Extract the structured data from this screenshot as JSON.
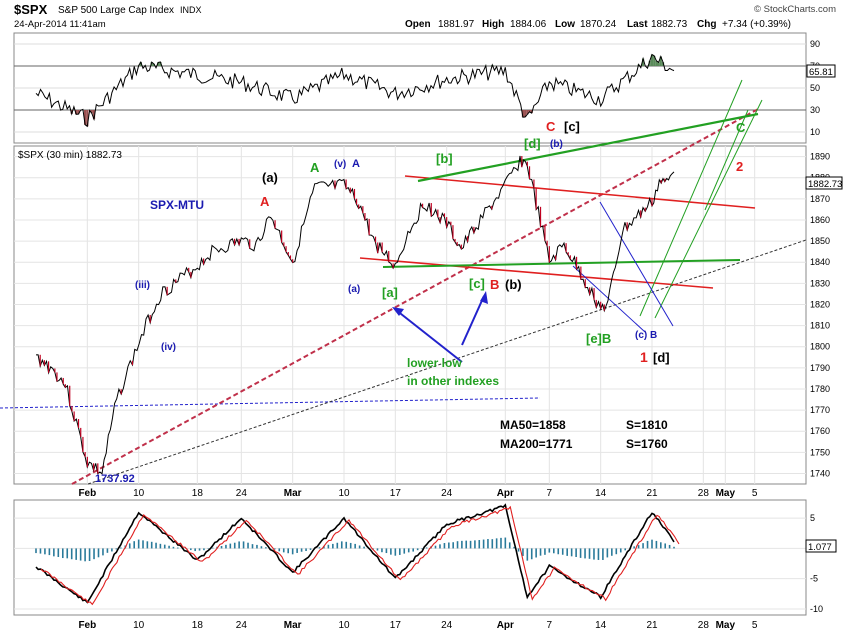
{
  "header": {
    "symbol": "$SPX",
    "name": "S&P 500 Large Cap Index",
    "exchange": "INDX",
    "timestamp": "24-Apr-2014 11:41am",
    "open_label": "Open",
    "open": "1881.97",
    "high_label": "High",
    "high": "1884.06",
    "low_label": "Low",
    "low": "1870.24",
    "last_label": "Last",
    "last": "1882.73",
    "chg_label": "Chg",
    "chg": "+7.34 (+0.39%)",
    "watermark": "© StockCharts.com"
  },
  "rsi_panel": {
    "ticks": [
      "90",
      "70",
      "50",
      "30",
      "10"
    ],
    "last_badge": "65.81",
    "series_color": "#000000",
    "overbought_fill": "#5a8a5a",
    "oversold_fill": "#9a5050"
  },
  "price_panel": {
    "label": "$SPX (30 min) 1882.73",
    "title": "SPX-MTU",
    "last_badge": "1882.73",
    "ticks": [
      "1890",
      "1880",
      "1870",
      "1860",
      "1850",
      "1840",
      "1830",
      "1820",
      "1810",
      "1800",
      "1790",
      "1780",
      "1770",
      "1760",
      "1750",
      "1740"
    ],
    "annotations": {
      "low_label": "1737.92",
      "iii": "(iii)",
      "iv": "(iv)",
      "v": "(v)",
      "a_blue": "(a)",
      "A_blue": "A",
      "A_red": "A",
      "A_green": "A",
      "a_black": "(a)",
      "b_green": "[b]",
      "a_green": "[a]",
      "c_green": "[c]",
      "B_red": "B",
      "b_black": "(b)",
      "C_red": "C",
      "d_green": "[d]",
      "c_black": "[c]",
      "b_blue": "(b)",
      "eB_green": "[e]B",
      "cB_blue": "(c) B",
      "one_red": "1",
      "d_black": "[d]",
      "two_red": "2",
      "C_green": "C",
      "lower_low_1": "lower low",
      "lower_low_2": "in other indexes",
      "ma50": "MA50=1858",
      "s1810": "S=1810",
      "ma200": "MA200=1771",
      "s1760": "S=1760"
    }
  },
  "macd_panel": {
    "ticks": [
      "5",
      "0",
      "-5",
      "-10"
    ],
    "last_badge": "1.077"
  },
  "x_axis": {
    "labels": [
      "Feb",
      "10",
      "18",
      "24",
      "Mar",
      "10",
      "17",
      "24",
      "Apr",
      "7",
      "14",
      "21",
      "28",
      "May",
      "5"
    ]
  },
  "chart_data": [
    {
      "type": "line",
      "title": "$SPX (30 min) 1882.73",
      "x": [
        "2014-01-27",
        "2014-01-29",
        "2014-01-31",
        "2014-02-03",
        "2014-02-05",
        "2014-02-07",
        "2014-02-11",
        "2014-02-13",
        "2014-02-18",
        "2014-02-20",
        "2014-02-24",
        "2014-02-26",
        "2014-02-28",
        "2014-03-03",
        "2014-03-06",
        "2014-03-10",
        "2014-03-12",
        "2014-03-14",
        "2014-03-17",
        "2014-03-19",
        "2014-03-21",
        "2014-03-24",
        "2014-03-26",
        "2014-03-28",
        "2014-04-01",
        "2014-04-03",
        "2014-04-04",
        "2014-04-07",
        "2014-04-09",
        "2014-04-11",
        "2014-04-14",
        "2014-04-15",
        "2014-04-16",
        "2014-04-17",
        "2014-04-21",
        "2014-04-22",
        "2014-04-23",
        "2014-04-24"
      ],
      "series": [
        {
          "values": [
            1795,
            1790,
            1782,
            1745,
            1740,
            1775,
            1810,
            1825,
            1838,
            1845,
            1850,
            1848,
            1862,
            1840,
            1875,
            1876,
            1868,
            1850,
            1838,
            1856,
            1868,
            1858,
            1846,
            1857,
            1876,
            1888,
            1886,
            1840,
            1848,
            1836,
            1818,
            1820,
            1838,
            1855,
            1868,
            1878,
            1877,
            1882.73
          ]
        }
      ],
      "ylim": [
        1735,
        1895
      ]
    },
    {
      "type": "line",
      "title": "RSI",
      "x": [
        "2014-01-27",
        "2014-02-03",
        "2014-02-10",
        "2014-02-18",
        "2014-02-24",
        "2014-03-03",
        "2014-03-10",
        "2014-03-17",
        "2014-03-24",
        "2014-04-01",
        "2014-04-04",
        "2014-04-07",
        "2014-04-14",
        "2014-04-21",
        "2014-04-24"
      ],
      "series": [
        {
          "values": [
            45,
            22,
            70,
            62,
            55,
            40,
            62,
            45,
            58,
            66,
            20,
            55,
            40,
            78,
            65.81
          ]
        }
      ],
      "ylim": [
        0,
        100
      ]
    },
    {
      "type": "line",
      "title": "MACD",
      "x": [
        "2014-01-27",
        "2014-02-03",
        "2014-02-10",
        "2014-02-18",
        "2014-02-24",
        "2014-03-03",
        "2014-03-10",
        "2014-03-17",
        "2014-03-24",
        "2014-04-01",
        "2014-04-04",
        "2014-04-07",
        "2014-04-14",
        "2014-04-21",
        "2014-04-24"
      ],
      "series": [
        {
          "values": [
            -3,
            -9,
            6,
            -2,
            5,
            -4,
            5,
            -5,
            4,
            7,
            -8,
            -3,
            -8,
            6,
            1.077
          ]
        }
      ],
      "ylim": [
        -11,
        8
      ]
    }
  ]
}
